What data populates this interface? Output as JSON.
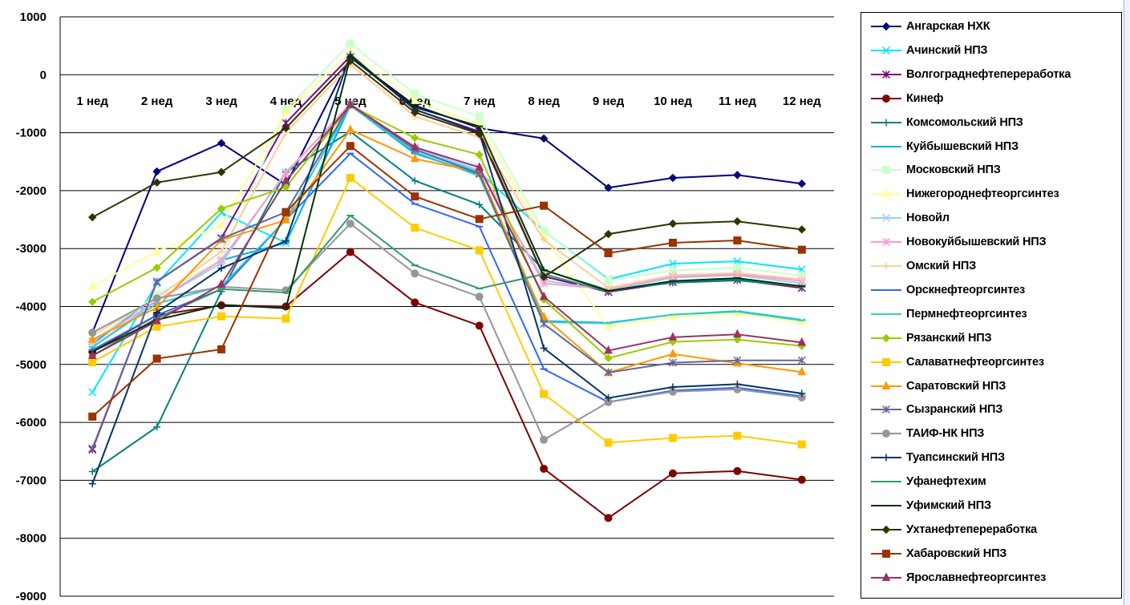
{
  "chart_data": {
    "type": "line",
    "title": "",
    "xlabel": "",
    "ylabel": "",
    "categories": [
      "1 нед",
      "2 нед",
      "3 нед",
      "4 нед",
      "5 нед",
      "6 нед",
      "7 нед",
      "8 нед",
      "9 нед",
      "10 нед",
      "11 нед",
      "12 нед"
    ],
    "ylim": [
      -9000,
      1000
    ],
    "yticks": [
      "1000",
      "0",
      "-1000",
      "-2000",
      "-3000",
      "-4000",
      "-5000",
      "-6000",
      "-7000",
      "-8000",
      "-9000"
    ],
    "grid": "horizontal",
    "legend_position": "right",
    "series": [
      {
        "name": "Ангарская НХК",
        "color": "#000080",
        "marker": "diamond",
        "values": [
          -4450,
          -1670,
          -1180,
          -1900,
          300,
          -530,
          -920,
          -1100,
          -1950,
          -1780,
          -1730,
          -1880
        ]
      },
      {
        "name": "Ачинский НПЗ",
        "color": "#00e5ff",
        "marker": "x",
        "values": [
          -5480,
          -3600,
          -2380,
          -2900,
          -500,
          -1280,
          -1680,
          -2700,
          -3530,
          -3260,
          -3220,
          -3360
        ]
      },
      {
        "name": "Волгограднефтепереработка",
        "color": "#800080",
        "marker": "star",
        "values": [
          -6470,
          -3570,
          -2820,
          -830,
          320,
          -600,
          -980,
          -3480,
          -3750,
          -3580,
          -3540,
          -3680
        ]
      },
      {
        "name": "Кинеф",
        "color": "#800000",
        "marker": "circle",
        "values": [
          -4780,
          -4150,
          -3980,
          -4000,
          -3060,
          -3930,
          -4330,
          -6800,
          -7650,
          -6880,
          -6840,
          -6990
        ]
      },
      {
        "name": "Комсомольский НПЗ",
        "color": "#008080",
        "marker": "plus",
        "values": [
          -6850,
          -6080,
          -3740,
          -1680,
          -980,
          -1830,
          -2240,
          -3370,
          -3720,
          -3590,
          -3550,
          -3650
        ]
      },
      {
        "name": "Куйбышевский НПЗ",
        "color": "#00b0f0",
        "marker": "dash",
        "values": [
          -4650,
          -3800,
          -3200,
          -2900,
          -530,
          -1360,
          -1720,
          -4250,
          -4280,
          -4140,
          -4080,
          -4230
        ]
      },
      {
        "name": "Московский НПЗ",
        "color": "#ccffcc",
        "marker": "square",
        "values": [
          -4600,
          -3800,
          -3200,
          -600,
          540,
          -330,
          -720,
          -2700,
          -3550,
          -3380,
          -3330,
          -3470
        ]
      },
      {
        "name": "Нижегороднефтеоргсинтез",
        "color": "#ffff99",
        "marker": "triangle",
        "values": [
          -3650,
          -3050,
          -2600,
          -650,
          400,
          -450,
          -850,
          -2800,
          -4350,
          -4180,
          -4120,
          -4270
        ]
      },
      {
        "name": "Новойл",
        "color": "#99ccff",
        "marker": "x",
        "values": [
          -4700,
          -3900,
          -3250,
          -1680,
          -530,
          -1270,
          -1650,
          -3550,
          -3720,
          -3500,
          -3460,
          -3600
        ]
      },
      {
        "name": "Новокуйбышевский НПЗ",
        "color": "#ff99cc",
        "marker": "star",
        "values": [
          -4600,
          -3900,
          -3200,
          -1700,
          -500,
          -1250,
          -1600,
          -3600,
          -3700,
          -3480,
          -3440,
          -3560
        ]
      },
      {
        "name": "Омский НПЗ",
        "color": "#ffcc99",
        "marker": "plus",
        "values": [
          -4500,
          -3850,
          -3050,
          -1000,
          170,
          -720,
          -1080,
          -2850,
          -3680,
          -3460,
          -3420,
          -3530
        ]
      },
      {
        "name": "Орскнефтеоргсинтез",
        "color": "#3366ff",
        "marker": "dash",
        "values": [
          -4750,
          -4150,
          -3700,
          -2500,
          -1360,
          -2230,
          -2620,
          -5080,
          -5650,
          -5450,
          -5400,
          -5550
        ]
      },
      {
        "name": "Пермнефтеоргсинтез",
        "color": "#33cccc",
        "marker": "dash",
        "values": [
          -4700,
          -3950,
          -3650,
          -2500,
          -530,
          -1330,
          -1750,
          -4270,
          -4290,
          -4140,
          -4090,
          -4240
        ]
      },
      {
        "name": "Рязанский НПЗ",
        "color": "#99cc00",
        "marker": "diamond",
        "values": [
          -3920,
          -3330,
          -2310,
          -1940,
          -530,
          -1090,
          -1380,
          -3880,
          -4890,
          -4610,
          -4570,
          -4680
        ]
      },
      {
        "name": "Салаватнефтеоргсинтез",
        "color": "#ffcc00",
        "marker": "square",
        "values": [
          -4960,
          -4350,
          -4170,
          -4210,
          -1780,
          -2640,
          -3030,
          -5510,
          -6350,
          -6270,
          -6230,
          -6380
        ]
      },
      {
        "name": "Саратовский НПЗ",
        "color": "#ff9900",
        "marker": "triangle",
        "values": [
          -4570,
          -4020,
          -2850,
          -2510,
          -950,
          -1450,
          -1680,
          -4180,
          -5140,
          -4820,
          -4980,
          -5130
        ]
      },
      {
        "name": "Сызранский НПЗ",
        "color": "#666699",
        "marker": "star",
        "values": [
          -6450,
          -3570,
          -2830,
          -2370,
          -510,
          -1290,
          -1710,
          -4300,
          -5140,
          -4970,
          -4930,
          -4930
        ]
      },
      {
        "name": "ТАИФ-НК НПЗ",
        "color": "#969696",
        "marker": "circle",
        "values": [
          -4450,
          -3860,
          -3660,
          -3720,
          -2570,
          -3430,
          -3830,
          -6300,
          -5650,
          -5470,
          -5430,
          -5570
        ]
      },
      {
        "name": "Туапсинский НПЗ",
        "color": "#003366",
        "marker": "plus",
        "values": [
          -7060,
          -4100,
          -3340,
          -2870,
          350,
          -600,
          -1000,
          -4720,
          -5580,
          -5390,
          -5340,
          -5500
        ]
      },
      {
        "name": "Уфанефтехим",
        "color": "#339966",
        "marker": "dash",
        "values": [
          -4850,
          -4200,
          -3700,
          -3760,
          -2430,
          -3290,
          -3690,
          -3440,
          -3740,
          -3560,
          -3520,
          -3660
        ]
      },
      {
        "name": "Уфимский НПЗ",
        "color": "#003300",
        "marker": "dash",
        "values": [
          -4780,
          -4230,
          -3970,
          -4030,
          300,
          -560,
          -890,
          -3370,
          -3730,
          -3560,
          -3510,
          -3650
        ]
      },
      {
        "name": "Ухтанефтепереработка",
        "color": "#333300",
        "marker": "diamond",
        "values": [
          -2460,
          -1860,
          -1680,
          -920,
          240,
          -650,
          -1020,
          -3490,
          -2750,
          -2570,
          -2530,
          -2670
        ]
      },
      {
        "name": "Хабаровский НПЗ",
        "color": "#993300",
        "marker": "square",
        "values": [
          -5900,
          -4900,
          -4740,
          -2370,
          -1230,
          -2100,
          -2490,
          -2260,
          -3080,
          -2900,
          -2860,
          -3020
        ]
      },
      {
        "name": "Ярославнефтеоргсинтез",
        "color": "#993366",
        "marker": "triangle",
        "values": [
          -4850,
          -4250,
          -3620,
          -1830,
          -520,
          -1250,
          -1600,
          -3830,
          -4760,
          -4530,
          -4480,
          -4620
        ]
      }
    ]
  }
}
